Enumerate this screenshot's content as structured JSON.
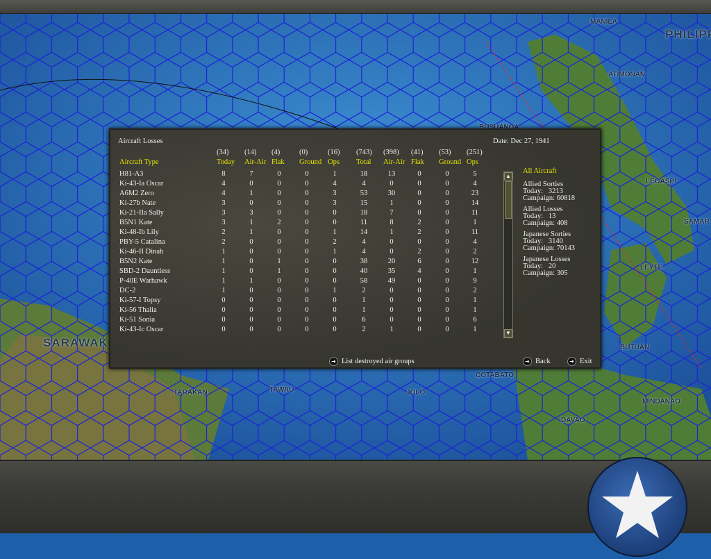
{
  "map": {
    "labels": [
      "MANILA",
      "PHILIPP",
      "ATIMONAN",
      "LEGASPI",
      "SAMAR",
      "LEYTE",
      "BUSUANGA",
      "SARAWAK",
      "TARAKAN",
      "TAWAU",
      "JOLO",
      "COTABATO",
      "BUTUAN",
      "MINDANAO",
      "DAVAO"
    ]
  },
  "panel": {
    "title": "Aircraft Losses",
    "date": "Date: Dec 27, 1941",
    "type_header": "Aircraft Type",
    "column_totals": [
      "(34)",
      "(14)",
      "(4)",
      "(0)",
      "(16)",
      "(743)",
      "(398)",
      "(41)",
      "(53)",
      "(251)"
    ],
    "columns": [
      "Today",
      "Air-Air",
      "Flak",
      "Ground",
      "Ops",
      "Total",
      "Air-Air",
      "Flak",
      "Ground",
      "Ops"
    ],
    "rows": [
      {
        "type": "H81-A3",
        "v": [
          8,
          7,
          0,
          0,
          1,
          18,
          13,
          0,
          0,
          5
        ]
      },
      {
        "type": "Ki-43-Ia Oscar",
        "v": [
          4,
          0,
          0,
          0,
          4,
          4,
          0,
          0,
          0,
          4
        ]
      },
      {
        "type": "A6M2 Zero",
        "v": [
          4,
          1,
          0,
          0,
          3,
          53,
          30,
          0,
          0,
          23
        ]
      },
      {
        "type": "Ki-27b Nate",
        "v": [
          3,
          0,
          0,
          0,
          3,
          15,
          1,
          0,
          0,
          14
        ]
      },
      {
        "type": "Ki-21-IIa Sally",
        "v": [
          3,
          3,
          0,
          0,
          0,
          18,
          7,
          0,
          0,
          11
        ]
      },
      {
        "type": "B5N1 Kate",
        "v": [
          3,
          1,
          2,
          0,
          0,
          11,
          8,
          2,
          0,
          1
        ]
      },
      {
        "type": "Ki-48-Ib Lily",
        "v": [
          2,
          1,
          0,
          0,
          1,
          14,
          1,
          2,
          0,
          11
        ]
      },
      {
        "type": "PBY-5 Catalina",
        "v": [
          2,
          0,
          0,
          0,
          2,
          4,
          0,
          0,
          0,
          4
        ]
      },
      {
        "type": "Ki-46-II Dinah",
        "v": [
          1,
          0,
          0,
          0,
          1,
          4,
          0,
          2,
          0,
          2
        ]
      },
      {
        "type": "B5N2 Kate",
        "v": [
          1,
          0,
          1,
          0,
          0,
          38,
          20,
          6,
          0,
          12
        ]
      },
      {
        "type": "SBD-2 Dauntless",
        "v": [
          1,
          0,
          1,
          0,
          0,
          40,
          35,
          4,
          0,
          1
        ]
      },
      {
        "type": "P-40E Warhawk",
        "v": [
          1,
          1,
          0,
          0,
          0,
          58,
          49,
          0,
          0,
          9
        ]
      },
      {
        "type": "DC-2",
        "v": [
          1,
          0,
          0,
          0,
          1,
          2,
          0,
          0,
          0,
          2
        ]
      },
      {
        "type": "Ki-57-I Topsy",
        "v": [
          0,
          0,
          0,
          0,
          0,
          1,
          0,
          0,
          0,
          1
        ]
      },
      {
        "type": "Ki-56 Thalia",
        "v": [
          0,
          0,
          0,
          0,
          0,
          1,
          0,
          0,
          0,
          1
        ]
      },
      {
        "type": "Ki-51 Sonia",
        "v": [
          0,
          0,
          0,
          0,
          0,
          6,
          0,
          0,
          0,
          6
        ]
      },
      {
        "type": "Ki-43-Ic Oscar",
        "v": [
          0,
          0,
          0,
          0,
          0,
          2,
          1,
          0,
          0,
          1
        ]
      }
    ],
    "summary": {
      "heading": "All Aircraft",
      "blocks": [
        {
          "title": "Allied Sorties",
          "today": "Today:   3213",
          "campaign": "Campaign: 60818"
        },
        {
          "title": "Allied Losses",
          "today": "Today:   13",
          "campaign": "Campaign: 408"
        },
        {
          "title": "Japanese Sorties",
          "today": "Today:   3140",
          "campaign": "Campaign: 70143"
        },
        {
          "title": "Japanese Losses",
          "today": "Today:   20",
          "campaign": "Campaign: 305"
        }
      ]
    },
    "actions": {
      "list": "List destroyed air groups",
      "back": "Back",
      "exit": "Exit"
    },
    "icons": {
      "action": "arrow-right-circle-icon",
      "scroll_up": "arrow-up-icon",
      "scroll_down": "arrow-down-icon"
    }
  },
  "colors": {
    "header": "#e8e400",
    "text": "#f0f0ea",
    "panel": "#3d3d36",
    "sea": "#1d5fa8"
  }
}
